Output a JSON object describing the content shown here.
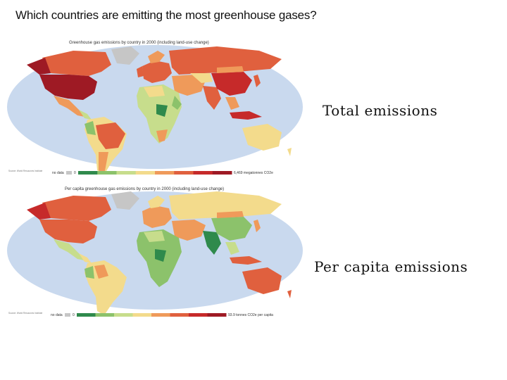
{
  "slide": {
    "title": "Which countries are emitting the most greenhouse gases?"
  },
  "maps": {
    "total": {
      "title": "Greenhouse gas emissions by country in 2000 (including land-use change)",
      "legend_no_data": "no data",
      "legend_min": "0",
      "legend_max": "6,469 megatonnes CO2e",
      "side_label": "Total emissions",
      "colors": {
        "ocean": "#c9d9ee",
        "no_data": "#c6c6c6",
        "very_low": "#2f8a4c",
        "low": "#8cc26b",
        "low_mid": "#c7dd8c",
        "mid": "#f3db8c",
        "mid_high": "#ef9a5a",
        "high": "#e0603e",
        "very_high": "#c62a2a",
        "max": "#9e1a24"
      }
    },
    "per_capita": {
      "title": "Per capita greenhouse gas emissions by country in 2000 (including land-use change)",
      "legend_no_data": "no data",
      "legend_min": "0",
      "legend_max": "93.9 tonnes CO2e per capita",
      "side_label": "Per capita emissions"
    }
  }
}
